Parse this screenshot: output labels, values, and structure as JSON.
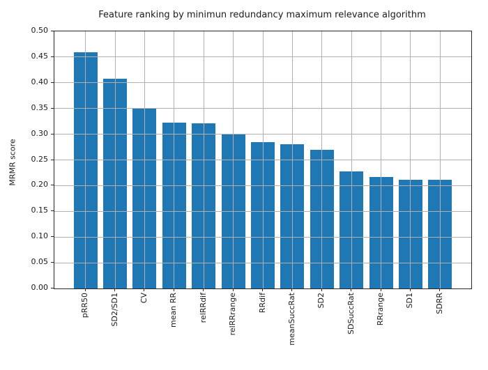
{
  "chart_data": {
    "type": "bar",
    "title": "Feature ranking by minimun redundancy maximum relevance algorithm",
    "xlabel": "",
    "ylabel": "MRMR score",
    "categories": [
      "pRR50",
      "SD2/SD1",
      "CV",
      "mean RR",
      "relRRdif",
      "relRRrange",
      "RRdif",
      "meanSuccRat",
      "SD2",
      "SDSuccRat",
      "RRrange",
      "SD1",
      "SDRR"
    ],
    "values": [
      0.459,
      0.408,
      0.349,
      0.322,
      0.321,
      0.301,
      0.285,
      0.281,
      0.27,
      0.228,
      0.217,
      0.211,
      0.211
    ],
    "ylim": [
      0,
      0.5
    ],
    "ytick_step": 0.05,
    "ytick_labels": [
      "0.00",
      "0.05",
      "0.10",
      "0.15",
      "0.20",
      "0.25",
      "0.30",
      "0.35",
      "0.40",
      "0.45",
      "0.50"
    ],
    "x_tick_rotation": 90,
    "grid": true,
    "grid_on_top_of_bars": true,
    "legend": null,
    "bar_color": "#1f77b4",
    "grid_color": "#b0b0b0",
    "axis_color": "#262626"
  }
}
